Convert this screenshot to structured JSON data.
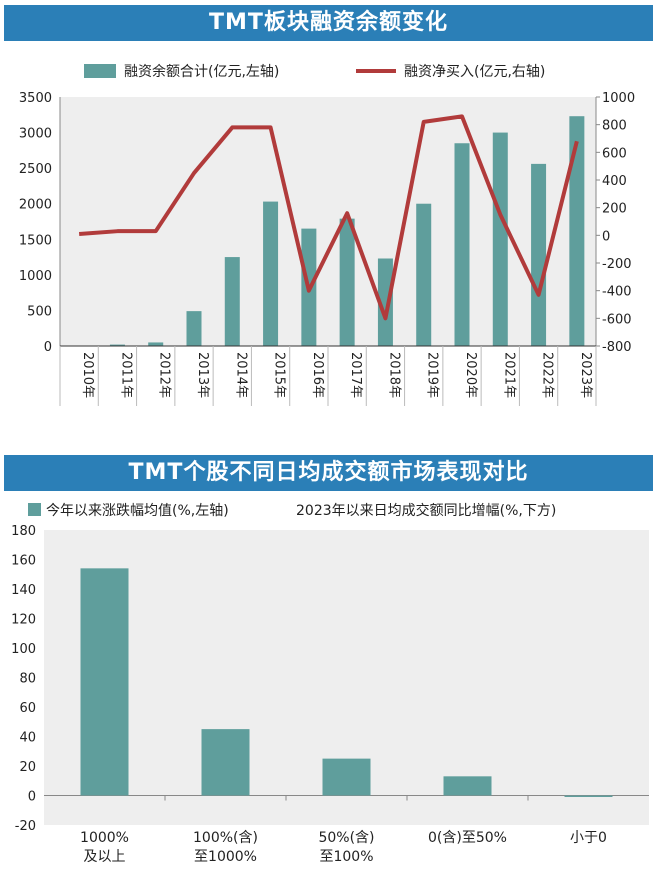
{
  "colors": {
    "banner": "#2b7fb7",
    "bar": "#5f9e9c",
    "line": "#b13b3b",
    "plot_bg": "#eeeeee"
  },
  "chart_data": [
    {
      "type": "bar",
      "title": "TMT板块融资余额变化",
      "categories": [
        "2010年",
        "2011年",
        "2012年",
        "2013年",
        "2014年",
        "2015年",
        "2016年",
        "2017年",
        "2018年",
        "2019年",
        "2020年",
        "2021年",
        "2022年",
        "2023年"
      ],
      "series": [
        {
          "name": "融资余额合计(亿元,左轴)",
          "type": "bar",
          "axis": "left",
          "values": [
            5,
            20,
            50,
            490,
            1250,
            2030,
            1650,
            1790,
            1230,
            2000,
            2850,
            3000,
            2560,
            3230
          ]
        },
        {
          "name": "融资净买入(亿元,右轴)",
          "type": "line",
          "axis": "right",
          "values": [
            10,
            30,
            30,
            450,
            780,
            780,
            -400,
            160,
            -600,
            820,
            860,
            150,
            -430,
            680
          ]
        }
      ],
      "yticks_left": [
        0,
        500,
        1000,
        1500,
        2000,
        2500,
        3000,
        3500
      ],
      "yticks_right": [
        -800,
        -600,
        -400,
        -200,
        0,
        200,
        400,
        600,
        800,
        1000
      ],
      "ylim_left": [
        0,
        3500
      ],
      "ylim_right": [
        -800,
        1000
      ],
      "grid": false,
      "legend_position": "top"
    },
    {
      "type": "bar",
      "title": "TMT个股不同日均成交额市场表现对比",
      "categories": [
        [
          "1000%",
          "及以上"
        ],
        [
          "100%(含)",
          "至1000%"
        ],
        [
          "50%(含)",
          "至100%"
        ],
        [
          "0(含)至50%"
        ],
        [
          "小于0"
        ]
      ],
      "series": [
        {
          "name": "今年以来涨跌幅均值(%,左轴)",
          "values": [
            154,
            45,
            25,
            13,
            -1
          ]
        }
      ],
      "x_caption": "2023年以来日均成交额同比增幅(%,下方)",
      "yticks": [
        -20,
        0,
        20,
        40,
        60,
        80,
        100,
        120,
        140,
        160,
        180
      ],
      "ylim": [
        -20,
        180
      ],
      "grid": false,
      "legend_position": "top-left"
    }
  ]
}
